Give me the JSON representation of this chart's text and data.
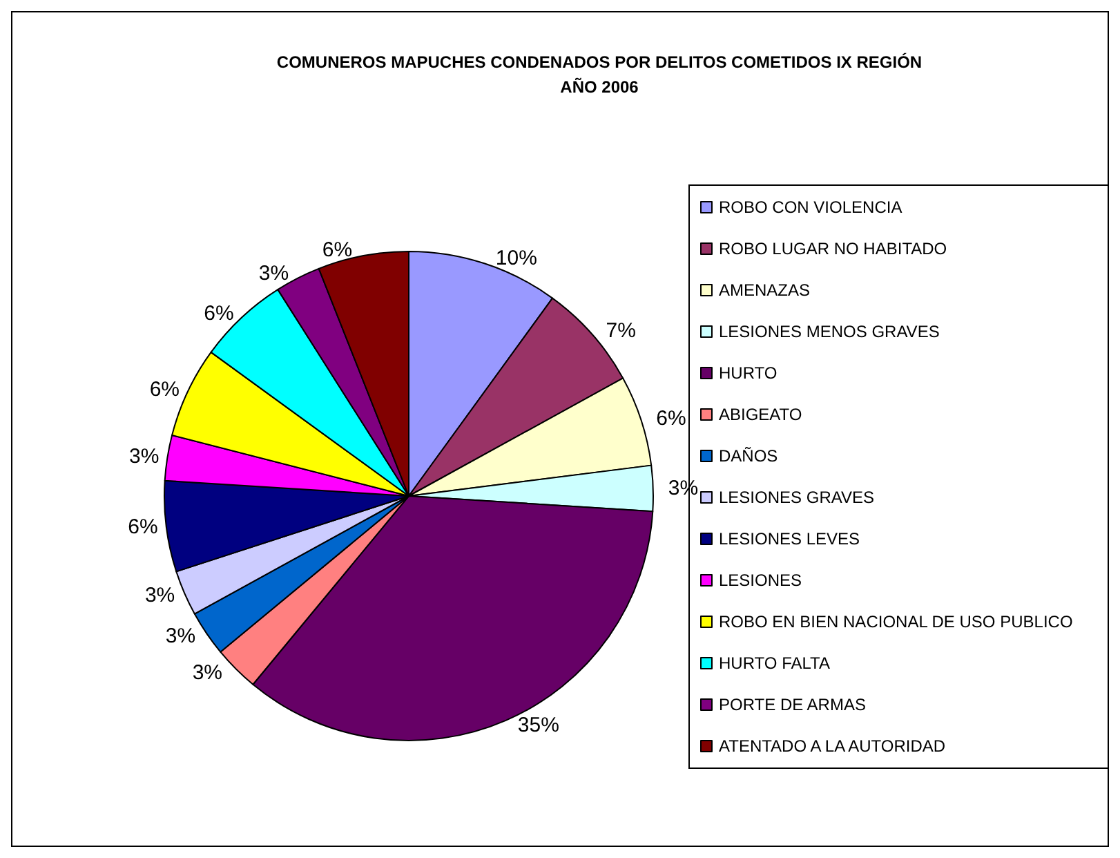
{
  "chart_data": {
    "type": "pie",
    "title": "COMUNEROS MAPUCHES CONDENADOS POR DELITOS COMETIDOS IX REGIÓN\nAÑO 2006",
    "categories": [
      "ROBO CON VIOLENCIA",
      "ROBO LUGAR NO HABITADO",
      "AMENAZAS",
      "LESIONES MENOS GRAVES",
      "HURTO",
      "ABIGEATO",
      "DAÑOS",
      "LESIONES GRAVES",
      "LESIONES LEVES",
      "LESIONES",
      "ROBO EN BIEN NACIONAL DE USO PUBLICO",
      "HURTO FALTA",
      "PORTE DE ARMAS",
      "ATENTADO A LA AUTORIDAD"
    ],
    "values": [
      10,
      7,
      6,
      3,
      35,
      3,
      3,
      3,
      6,
      3,
      6,
      6,
      3,
      6
    ],
    "colors": [
      "#9999ff",
      "#993366",
      "#ffffcc",
      "#ccffff",
      "#660066",
      "#ff8080",
      "#0066cc",
      "#ccccff",
      "#000080",
      "#ff00ff",
      "#ffff00",
      "#00ffff",
      "#800080",
      "#800000"
    ],
    "value_labels": [
      "10%",
      "7%",
      "6%",
      "3%",
      "35%",
      "3%",
      "3%",
      "3%",
      "6%",
      "3%",
      "6%",
      "6%",
      "3%",
      "6%"
    ],
    "legend": "right"
  }
}
